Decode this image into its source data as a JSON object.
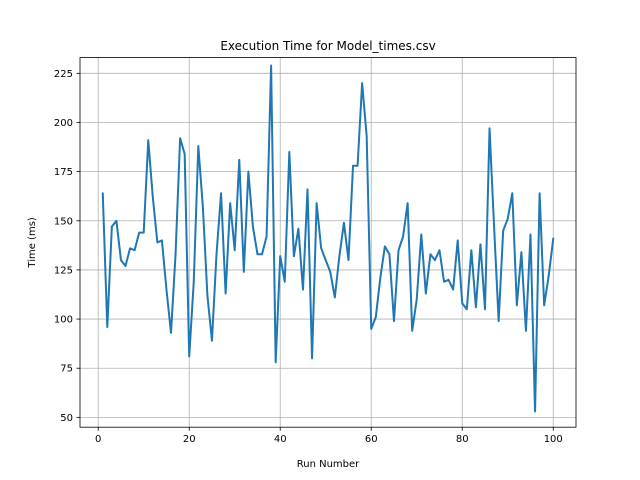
{
  "chart_data": {
    "type": "line",
    "title": "Execution Time for Model_times.csv",
    "xlabel": "Run Number",
    "ylabel": "Time (ms)",
    "xlim": [
      -4,
      105
    ],
    "ylim": [
      45,
      233
    ],
    "xticks": [
      0,
      20,
      40,
      60,
      80,
      100
    ],
    "yticks": [
      50,
      75,
      100,
      125,
      150,
      175,
      200,
      225
    ],
    "grid": true,
    "line_color": "#1f77b4",
    "series": [
      {
        "x": [
          1,
          2,
          3,
          4,
          5,
          6,
          7,
          8,
          9,
          10,
          11,
          12,
          13,
          14,
          15,
          16,
          17,
          18,
          19,
          20,
          21,
          22,
          23,
          24,
          25,
          26,
          27,
          28,
          29,
          30,
          31,
          32,
          33,
          34,
          35,
          36,
          37,
          38,
          39,
          40,
          41,
          42,
          43,
          44,
          45,
          46,
          47,
          48,
          49,
          50,
          51,
          52,
          53,
          54,
          55,
          56,
          57,
          58,
          59,
          60,
          61,
          62,
          63,
          64,
          65,
          66,
          67,
          68,
          69,
          70,
          71,
          72,
          73,
          74,
          75,
          76,
          77,
          78,
          79,
          80,
          81,
          82,
          83,
          84,
          85,
          86,
          87,
          88,
          89,
          90,
          91,
          92,
          93,
          94,
          95,
          96,
          97,
          98,
          99,
          100
        ],
        "values": [
          164,
          96,
          147,
          150,
          130,
          127,
          136,
          135,
          144,
          144,
          191,
          162,
          139,
          140,
          115,
          93,
          133,
          192,
          184,
          81,
          119,
          188,
          157,
          112,
          89,
          133,
          164,
          113,
          159,
          135,
          181,
          124,
          175,
          147,
          133,
          133,
          142,
          229,
          78,
          132,
          119,
          185,
          132,
          146,
          115,
          166,
          80,
          159,
          136,
          130,
          124,
          111,
          132,
          149,
          130,
          178,
          178,
          220,
          193,
          95,
          101,
          121,
          137,
          133,
          99,
          135,
          142,
          159,
          94,
          110,
          143,
          113,
          133,
          130,
          135,
          119,
          120,
          115,
          140,
          108,
          105,
          135,
          106,
          138,
          105,
          197,
          147,
          99,
          145,
          151,
          164,
          107,
          134,
          94,
          143,
          53,
          164,
          107,
          122,
          141
        ]
      }
    ]
  }
}
